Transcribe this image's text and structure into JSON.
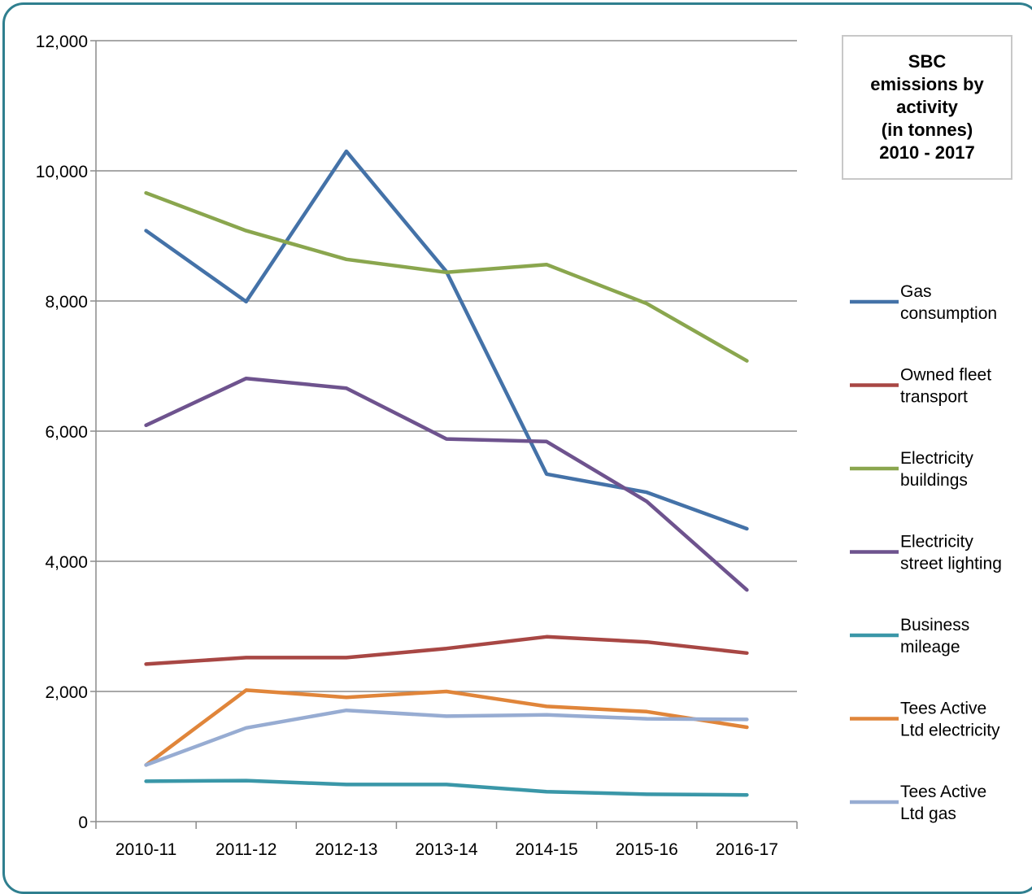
{
  "chart_data": {
    "type": "line",
    "title": "SBC\nemissions by\nactivity\n(in tonnes)\n2010 - 2017",
    "xlabel": "",
    "ylabel": "",
    "ylim": [
      0,
      12000
    ],
    "yticks": [
      0,
      2000,
      4000,
      6000,
      8000,
      10000,
      12000
    ],
    "ytick_labels": [
      "0",
      "2,000",
      "4,000",
      "6,000",
      "8,000",
      "10,000",
      "12,000"
    ],
    "grid": true,
    "legend_position": "right",
    "categories": [
      "2010-11",
      "2011-12",
      "2012-13",
      "2013-14",
      "2014-15",
      "2015-16",
      "2016-17"
    ],
    "series": [
      {
        "name": "Gas consumption",
        "legend_lines": [
          "Gas",
          "consumption"
        ],
        "color": "#4472a8",
        "values": [
          9080,
          7990,
          10300,
          8450,
          5340,
          5060,
          4500
        ]
      },
      {
        "name": "Owned fleet transport",
        "legend_lines": [
          "Owned fleet",
          "transport"
        ],
        "color": "#a84744",
        "values": [
          2420,
          2520,
          2520,
          2660,
          2840,
          2760,
          2590
        ]
      },
      {
        "name": "Electricity buildings",
        "legend_lines": [
          "Electricity",
          "buildings"
        ],
        "color": "#8aa64e",
        "values": [
          9660,
          9080,
          8640,
          8440,
          8560,
          7960,
          7080
        ]
      },
      {
        "name": "Electricity street lighting",
        "legend_lines": [
          "Electricity",
          "street lighting"
        ],
        "color": "#6e538e",
        "values": [
          6090,
          6810,
          6660,
          5880,
          5840,
          4920,
          3560
        ]
      },
      {
        "name": "Business mileage",
        "legend_lines": [
          "Business",
          "mileage"
        ],
        "color": "#3a97a8",
        "values": [
          620,
          630,
          570,
          570,
          460,
          420,
          410
        ]
      },
      {
        "name": "Tees Active Ltd electricity",
        "legend_lines": [
          "Tees Active",
          "Ltd electricity"
        ],
        "color": "#e0853a",
        "values": [
          870,
          2020,
          1910,
          2000,
          1770,
          1690,
          1450
        ]
      },
      {
        "name": "Tees Active Ltd gas",
        "legend_lines": [
          "Tees Active",
          "Ltd gas"
        ],
        "color": "#97acd2",
        "values": [
          870,
          1440,
          1710,
          1620,
          1640,
          1580,
          1570
        ]
      }
    ]
  }
}
